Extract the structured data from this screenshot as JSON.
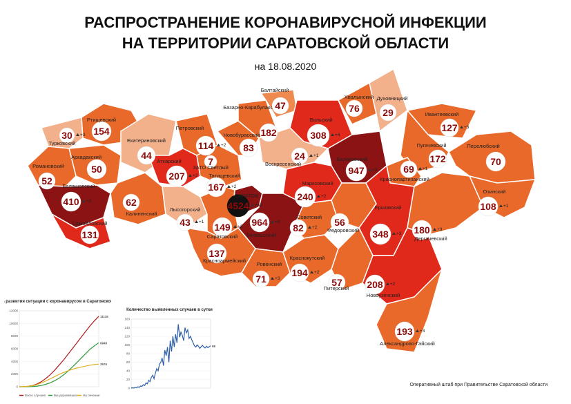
{
  "title_line1": "РАСПРОСТРАНЕНИЕ КОРОНАВИРУСНОЙ ИНФЕКЦИИ",
  "title_line2": "НА ТЕРРИТОРИИ САРАТОВСКОЙ ОБЛАСТИ",
  "date": "на 18.08.2020",
  "footer": "Оперативный штаб при Правительстве Саратовской области",
  "colors": {
    "darkest": "#8c1313",
    "dark": "#c0392b",
    "red": "#e0281b",
    "orange": "#e8692a",
    "light_orange": "#ee8a4f",
    "peach": "#f2b08b",
    "circle_fill": "#ffffff",
    "number": "#8b0a0a"
  },
  "districts": [
    {
      "name": "Ртищевский",
      "value": "154",
      "delta": ""
    },
    {
      "name": "Турковский",
      "value": "30",
      "delta": "+3"
    },
    {
      "name": "Аркадакский",
      "value": "50",
      "delta": ""
    },
    {
      "name": "Романовский",
      "value": "52",
      "delta": ""
    },
    {
      "name": "Балашовский",
      "value": "410",
      "delta": "+2"
    },
    {
      "name": "Самойловский",
      "value": "131",
      "delta": ""
    },
    {
      "name": "Екатериновский",
      "value": "44",
      "delta": ""
    },
    {
      "name": "Калининский",
      "value": "62",
      "delta": ""
    },
    {
      "name": "Петровский",
      "value": "114",
      "delta": "+2"
    },
    {
      "name": "Аткарский",
      "value": "207",
      "delta": "+2"
    },
    {
      "name": "ЗАТО Светлый",
      "value": "7",
      "delta": ""
    },
    {
      "name": "Татищевский",
      "value": "167",
      "delta": "+2"
    },
    {
      "name": "Лысогорский",
      "value": "43",
      "delta": "+1"
    },
    {
      "name": "САРАТОВ",
      "value": "4524",
      "delta": "+42"
    },
    {
      "name": "Новобурасский",
      "value": "83",
      "delta": ""
    },
    {
      "name": "Базарно-Карабулакский",
      "value": "182",
      "delta": ""
    },
    {
      "name": "Балтайский",
      "value": "47",
      "delta": ""
    },
    {
      "name": "Вольский",
      "value": "308",
      "delta": "+4"
    },
    {
      "name": "Хвалынский",
      "value": "76",
      "delta": ""
    },
    {
      "name": "Духовницкий",
      "value": "29",
      "delta": ""
    },
    {
      "name": "Ивантеевский",
      "value": "127",
      "delta": "+3"
    },
    {
      "name": "Воскресенский",
      "value": "24",
      "delta": "+1"
    },
    {
      "name": "Балаковский",
      "value": "947",
      "delta": "+3"
    },
    {
      "name": "Пугачевский",
      "value": "172",
      "delta": ""
    },
    {
      "name": "Перелюбский",
      "value": "70",
      "delta": ""
    },
    {
      "name": "Краснопартизанский",
      "value": "69",
      "delta": "+1"
    },
    {
      "name": "Марксовский",
      "value": "240",
      "delta": "+2"
    },
    {
      "name": "Энгельсский",
      "value": "964",
      "delta": "+8"
    },
    {
      "name": "Советский",
      "value": "82",
      "delta": "+2"
    },
    {
      "name": "Федоровский",
      "value": "56",
      "delta": ""
    },
    {
      "name": "Ершовский",
      "value": "348",
      "delta": "+3"
    },
    {
      "name": "Озинский",
      "value": "108",
      "delta": "+1"
    },
    {
      "name": "Дергачевский",
      "value": "180",
      "delta": "+3"
    },
    {
      "name": "Саратовский",
      "value": "149",
      "delta": "+3"
    },
    {
      "name": "Красноармейский",
      "value": "137",
      "delta": ""
    },
    {
      "name": "Ровенский",
      "value": "71",
      "delta": "+3"
    },
    {
      "name": "Краснокутский",
      "value": "194",
      "delta": "+2"
    },
    {
      "name": "Питерский",
      "value": "57",
      "delta": ""
    },
    {
      "name": "Новоузенский",
      "value": "208",
      "delta": "+2"
    },
    {
      "name": "Александрово-Гайский",
      "value": "193",
      "delta": "+3"
    }
  ],
  "chart_data": [
    {
      "type": "line",
      "title": "Динамика развития ситуации с коронавирусом в Саратовской области",
      "ylim": [
        0,
        12000
      ],
      "yticks": [
        "0",
        "2000",
        "4000",
        "6000",
        "8000",
        "10000",
        "12000"
      ],
      "series": [
        {
          "name": "Всего случаев",
          "color": "#b01c1c",
          "label": "11116",
          "values": [
            0,
            20,
            80,
            200,
            450,
            800,
            1300,
            1900,
            2600,
            3400,
            4200,
            5100,
            6000,
            6900,
            7800,
            8700,
            9600,
            10400,
            11116
          ]
        },
        {
          "name": "Выздоровевших",
          "color": "#2e9a3c",
          "label": "6949",
          "values": [
            0,
            0,
            10,
            40,
            100,
            200,
            380,
            620,
            950,
            1350,
            1850,
            2450,
            3100,
            3800,
            4500,
            5200,
            5900,
            6450,
            6949
          ]
        },
        {
          "name": "На лечении",
          "color": "#e0b020",
          "label": "3576",
          "values": [
            0,
            20,
            70,
            160,
            350,
            600,
            900,
            1250,
            1600,
            1950,
            2250,
            2500,
            2750,
            2950,
            3100,
            3250,
            3400,
            3500,
            3576
          ]
        }
      ]
    },
    {
      "type": "line",
      "title": "Количество выявленных случаев в сутки",
      "ylim": [
        0,
        160
      ],
      "yticks": [
        "0",
        "20",
        "40",
        "60",
        "80",
        "100",
        "120",
        "140",
        "160"
      ],
      "series": [
        {
          "name": "",
          "color": "#2e5fa8",
          "label": "98",
          "values": [
            0,
            1,
            0,
            2,
            1,
            3,
            2,
            5,
            4,
            8,
            6,
            12,
            10,
            18,
            15,
            25,
            30,
            22,
            35,
            45,
            40,
            55,
            60,
            70,
            52,
            88,
            75,
            95,
            60,
            110,
            85,
            120,
            95,
            125,
            105,
            148,
            118,
            130,
            122,
            110,
            140,
            128,
            135,
            115,
            120,
            112,
            105,
            98,
            95,
            100,
            97,
            92,
            96,
            99,
            95,
            93,
            97,
            94,
            96,
            98
          ]
        }
      ]
    }
  ]
}
